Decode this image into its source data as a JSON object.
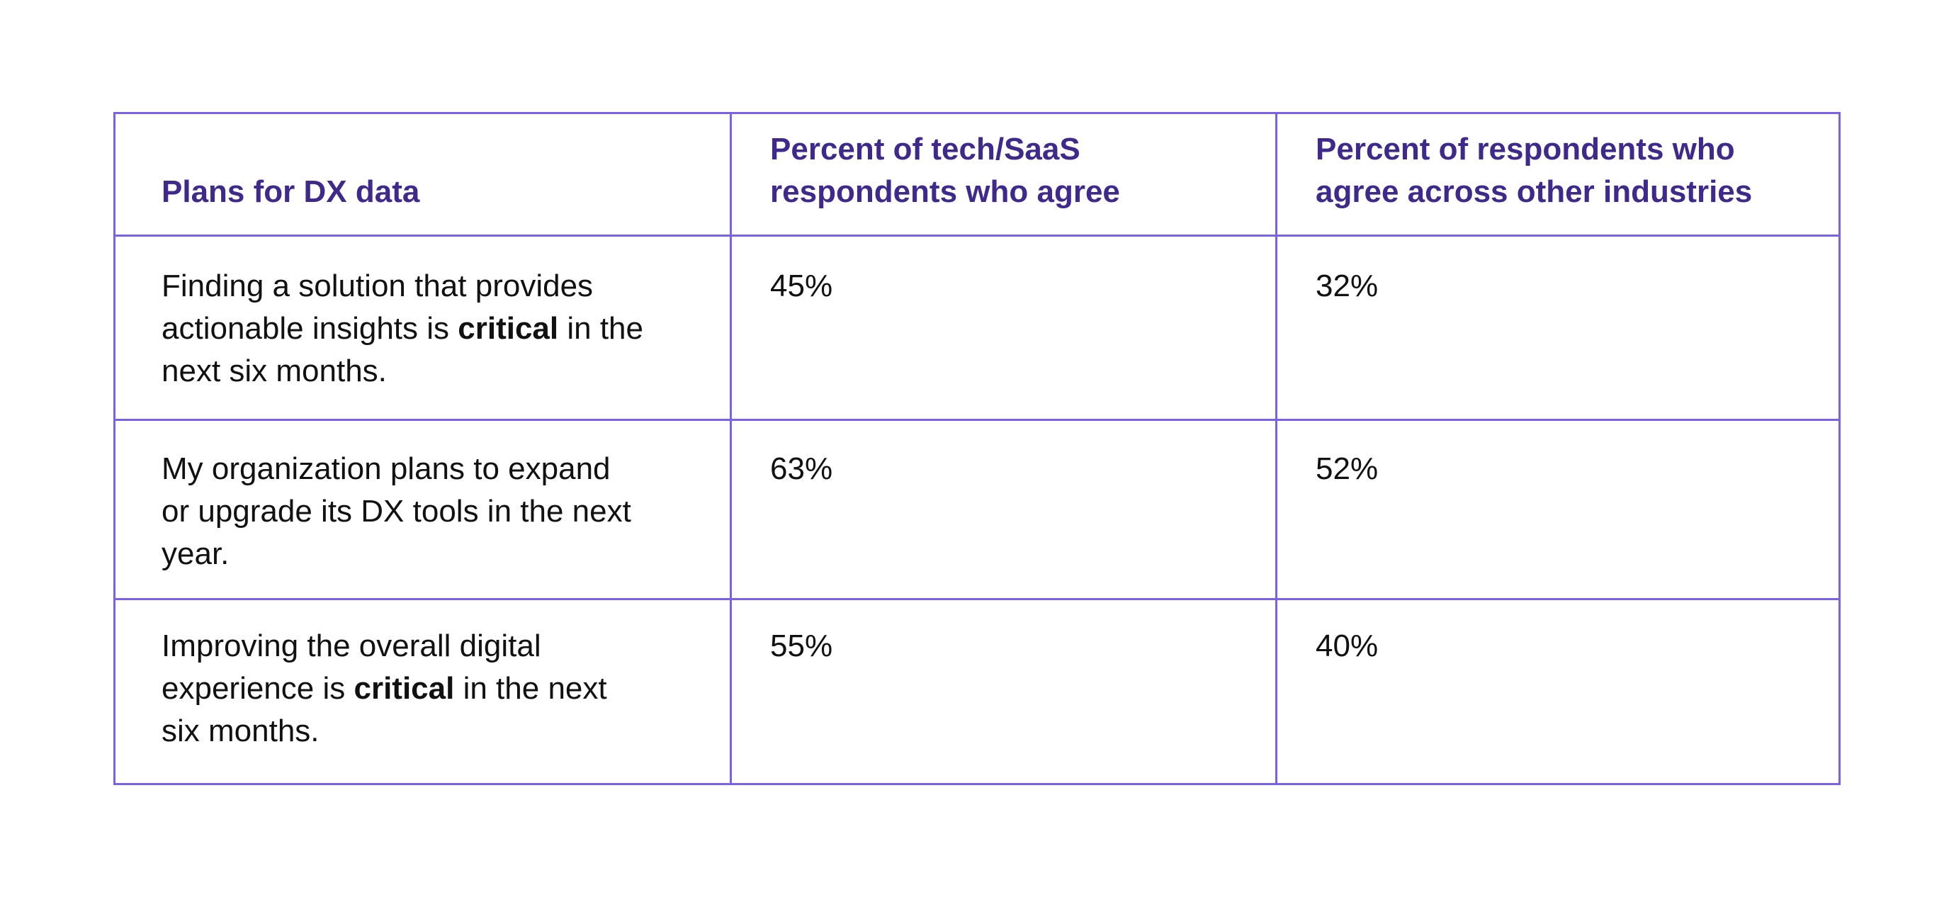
{
  "table": {
    "headers": [
      "Plans for DX data",
      "Percent of tech/SaaS respondents who agree",
      "Percent of respondents who agree across other industries"
    ],
    "rows": [
      {
        "statement": {
          "before": "Finding a solution that provides actionable insights is ",
          "emphasis": "critical",
          "after": " in the next six months."
        },
        "tech_saas": "45%",
        "other_industries": "32%"
      },
      {
        "statement": {
          "before": "My organization plans to expand or upgrade its DX tools in the next year.",
          "emphasis": "",
          "after": ""
        },
        "tech_saas": "63%",
        "other_industries": "52%"
      },
      {
        "statement": {
          "before": "Improving the overall digital experience is ",
          "emphasis": "critical",
          "after": " in the next six months."
        },
        "tech_saas": "55%",
        "other_industries": "40%"
      }
    ]
  },
  "colors": {
    "header_text": "#3f2a8c",
    "border": "#7b61e6",
    "body_text": "#111111"
  }
}
